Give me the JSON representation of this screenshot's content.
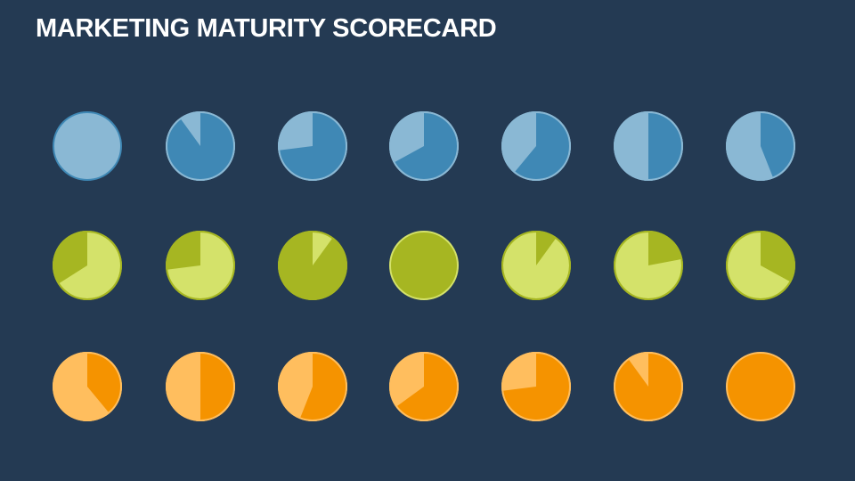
{
  "title": "MARKETING MATURITY SCORECARD",
  "colors": {
    "background": "#243a53",
    "title": "#ffffff"
  },
  "chart_data": {
    "type": "pie-grid",
    "note_fill": "each value is the fraction filled with the row's dark colour, running clockwise from 12 o'clock",
    "rows": [
      {
        "light": "#8ab8d4",
        "dark": "#3f88b5",
        "direction": "clockwise-light",
        "values": [
          0,
          0.9,
          0.73,
          0.67,
          0.61,
          0.5,
          0.44
        ]
      },
      {
        "light": "#d4e26a",
        "dark": "#a6b622",
        "direction": "counterclockwise",
        "values": [
          0.34,
          0.27,
          0.9,
          1,
          0.1,
          0.22,
          0.33
        ],
        "dir_per_item": [
          "ccw",
          "ccw",
          "ccw",
          "cw",
          "cw",
          "cw",
          "cw"
        ]
      },
      {
        "light": "#ffbe5e",
        "dark": "#f59300",
        "direction": "clockwise",
        "values": [
          0.39,
          0.5,
          0.56,
          0.65,
          0.73,
          0.9,
          1
        ]
      }
    ]
  }
}
